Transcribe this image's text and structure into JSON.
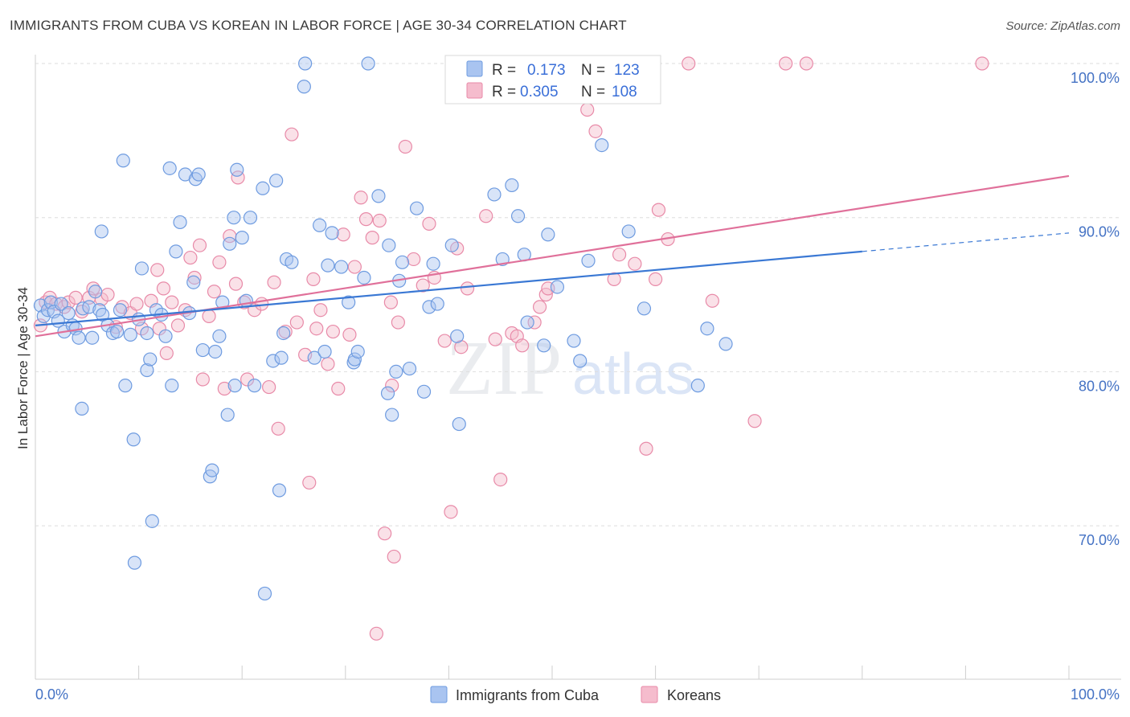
{
  "title": "IMMIGRANTS FROM CUBA VS KOREAN IN LABOR FORCE | AGE 30-34 CORRELATION CHART",
  "source": "Source: ZipAtlas.com",
  "watermark": {
    "zip": "ZIP",
    "atlas": "atlas"
  },
  "legend_box": {
    "rows": [
      {
        "r_label": "R =",
        "r_value": "0.173",
        "n_label": "N =",
        "n_value": "123",
        "color": "#a9c4f0",
        "stroke": "#6e9be0"
      },
      {
        "r_label": "R =",
        "r_value": "0.305",
        "n_label": "N =",
        "n_value": "108",
        "color": "#f5bccd",
        "stroke": "#e88aa8"
      }
    ]
  },
  "bottom_legend": [
    {
      "label": "Immigrants from Cuba",
      "color": "#a9c4f0",
      "stroke": "#6e9be0"
    },
    {
      "label": "Koreans",
      "color": "#f5bccd",
      "stroke": "#e88aa8"
    }
  ],
  "chart_data": {
    "type": "scatter",
    "ylabel": "In Labor Force | Age 30-34",
    "x_tick_labels": [
      "0.0%",
      "100.0%"
    ],
    "y_tick_labels": [
      "100.0%",
      "90.0%",
      "80.0%",
      "70.0%"
    ],
    "xlim": [
      0,
      100
    ],
    "ylim": [
      60.5,
      101.5
    ],
    "y_gridlines": [
      100,
      90,
      80,
      70
    ],
    "colors": {
      "cuba": "#3a78d4",
      "korean": "#e0709a"
    },
    "series": [
      {
        "name": "Immigrants from Cuba",
        "trend": {
          "x0": 0,
          "y0": 83.0,
          "x1": 80,
          "y1": 87.8,
          "dash_x1": 100,
          "dash_y1": 89.0
        },
        "points": [
          [
            0.5,
            84.3
          ],
          [
            0.8,
            83.6
          ],
          [
            1.2,
            84.0
          ],
          [
            1.5,
            84.5
          ],
          [
            1.8,
            83.9
          ],
          [
            2.2,
            83.3
          ],
          [
            2.5,
            84.4
          ],
          [
            2.8,
            82.6
          ],
          [
            3.2,
            83.8
          ],
          [
            3.6,
            83.0
          ],
          [
            3.9,
            82.8
          ],
          [
            4.2,
            82.2
          ],
          [
            4.6,
            84.1
          ],
          [
            4.5,
            77.6
          ],
          [
            5.2,
            84.2
          ],
          [
            5.5,
            82.2
          ],
          [
            5.8,
            85.2
          ],
          [
            6.2,
            84.0
          ],
          [
            6.5,
            83.7
          ],
          [
            6.4,
            89.1
          ],
          [
            7.0,
            83.0
          ],
          [
            7.5,
            82.5
          ],
          [
            7.9,
            82.6
          ],
          [
            8.2,
            84.0
          ],
          [
            8.5,
            93.7
          ],
          [
            8.7,
            79.1
          ],
          [
            9.2,
            82.4
          ],
          [
            9.5,
            75.6
          ],
          [
            9.6,
            67.6
          ],
          [
            10.0,
            83.4
          ],
          [
            10.3,
            86.7
          ],
          [
            10.8,
            82.5
          ],
          [
            10.8,
            80.1
          ],
          [
            11.1,
            80.8
          ],
          [
            11.3,
            70.3
          ],
          [
            11.7,
            84.0
          ],
          [
            12.2,
            83.7
          ],
          [
            12.6,
            82.3
          ],
          [
            13.0,
            93.2
          ],
          [
            13.2,
            79.1
          ],
          [
            13.6,
            87.8
          ],
          [
            14.0,
            89.7
          ],
          [
            14.5,
            92.8
          ],
          [
            14.9,
            83.8
          ],
          [
            15.3,
            85.8
          ],
          [
            15.5,
            92.5
          ],
          [
            15.8,
            92.8
          ],
          [
            16.2,
            81.4
          ],
          [
            16.9,
            73.2
          ],
          [
            17.1,
            73.6
          ],
          [
            17.4,
            81.3
          ],
          [
            17.8,
            82.3
          ],
          [
            18.1,
            84.5
          ],
          [
            18.6,
            77.2
          ],
          [
            18.8,
            88.3
          ],
          [
            19.2,
            90.0
          ],
          [
            19.3,
            79.1
          ],
          [
            19.5,
            93.1
          ],
          [
            20.0,
            88.7
          ],
          [
            20.4,
            84.6
          ],
          [
            20.8,
            90.0
          ],
          [
            21.2,
            79.1
          ],
          [
            22.0,
            91.9
          ],
          [
            22.2,
            65.6
          ],
          [
            23.0,
            80.7
          ],
          [
            23.3,
            92.4
          ],
          [
            23.6,
            72.3
          ],
          [
            23.8,
            80.9
          ],
          [
            24.0,
            82.5
          ],
          [
            24.3,
            87.3
          ],
          [
            24.8,
            87.1
          ],
          [
            26.0,
            98.5
          ],
          [
            26.1,
            100.0
          ],
          [
            27.0,
            80.9
          ],
          [
            27.5,
            89.5
          ],
          [
            28.0,
            81.3
          ],
          [
            28.3,
            86.9
          ],
          [
            28.7,
            89.0
          ],
          [
            29.6,
            86.8
          ],
          [
            30.3,
            84.5
          ],
          [
            30.8,
            80.6
          ],
          [
            30.9,
            80.8
          ],
          [
            31.2,
            81.3
          ],
          [
            31.8,
            86.1
          ],
          [
            32.2,
            100.0
          ],
          [
            33.2,
            91.4
          ],
          [
            34.1,
            78.6
          ],
          [
            34.2,
            88.2
          ],
          [
            34.5,
            77.2
          ],
          [
            34.9,
            80.0
          ],
          [
            35.2,
            85.9
          ],
          [
            35.5,
            87.1
          ],
          [
            36.2,
            80.2
          ],
          [
            36.9,
            90.6
          ],
          [
            37.6,
            78.7
          ],
          [
            38.1,
            84.2
          ],
          [
            38.5,
            87.0
          ],
          [
            38.9,
            84.4
          ],
          [
            40.3,
            88.2
          ],
          [
            40.8,
            82.3
          ],
          [
            41.0,
            76.6
          ],
          [
            44.4,
            91.5
          ],
          [
            45.2,
            87.3
          ],
          [
            46.1,
            92.1
          ],
          [
            46.7,
            90.1
          ],
          [
            47.3,
            87.6
          ],
          [
            47.6,
            83.2
          ],
          [
            49.2,
            81.7
          ],
          [
            49.6,
            88.9
          ],
          [
            50.5,
            85.5
          ],
          [
            52.1,
            82.0
          ],
          [
            52.7,
            80.7
          ],
          [
            53.5,
            87.2
          ],
          [
            54.8,
            94.7
          ],
          [
            57.4,
            89.1
          ],
          [
            58.9,
            84.1
          ],
          [
            64.1,
            79.1
          ],
          [
            65.0,
            82.8
          ],
          [
            66.8,
            81.8
          ]
        ]
      },
      {
        "name": "Koreans",
        "trend": {
          "x0": 0,
          "y0": 82.3,
          "x1": 100,
          "y1": 92.7
        },
        "points": [
          [
            0.5,
            83.0
          ],
          [
            1.0,
            84.5
          ],
          [
            1.4,
            84.8
          ],
          [
            2.0,
            84.4
          ],
          [
            2.8,
            84.2
          ],
          [
            3.2,
            84.5
          ],
          [
            3.9,
            84.8
          ],
          [
            4.5,
            83.9
          ],
          [
            5.2,
            84.8
          ],
          [
            5.6,
            85.4
          ],
          [
            6.4,
            84.7
          ],
          [
            7.0,
            85.0
          ],
          [
            7.8,
            82.9
          ],
          [
            8.4,
            84.2
          ],
          [
            9.2,
            83.8
          ],
          [
            9.8,
            84.4
          ],
          [
            10.3,
            82.8
          ],
          [
            11.2,
            84.6
          ],
          [
            11.8,
            86.6
          ],
          [
            12.0,
            82.8
          ],
          [
            12.4,
            85.4
          ],
          [
            12.7,
            81.2
          ],
          [
            13.2,
            84.5
          ],
          [
            13.8,
            83.0
          ],
          [
            14.5,
            84.0
          ],
          [
            15.0,
            87.4
          ],
          [
            15.4,
            86.1
          ],
          [
            15.9,
            88.2
          ],
          [
            16.2,
            79.5
          ],
          [
            16.8,
            83.6
          ],
          [
            17.3,
            85.2
          ],
          [
            17.8,
            87.1
          ],
          [
            18.3,
            78.9
          ],
          [
            18.8,
            88.8
          ],
          [
            19.4,
            85.7
          ],
          [
            19.6,
            92.6
          ],
          [
            20.2,
            84.5
          ],
          [
            21.2,
            84.0
          ],
          [
            21.9,
            84.4
          ],
          [
            22.6,
            79.0
          ],
          [
            23.1,
            85.8
          ],
          [
            23.5,
            76.3
          ],
          [
            24.2,
            82.6
          ],
          [
            24.8,
            95.4
          ],
          [
            25.3,
            83.2
          ],
          [
            26.1,
            81.1
          ],
          [
            26.5,
            72.8
          ],
          [
            26.9,
            86.0
          ],
          [
            27.2,
            82.8
          ],
          [
            27.6,
            84.0
          ],
          [
            28.3,
            80.5
          ],
          [
            28.8,
            82.6
          ],
          [
            29.3,
            78.9
          ],
          [
            29.8,
            88.9
          ],
          [
            30.4,
            82.4
          ],
          [
            30.9,
            86.8
          ],
          [
            31.5,
            91.3
          ],
          [
            32.0,
            89.9
          ],
          [
            32.6,
            88.7
          ],
          [
            33.3,
            89.8
          ],
          [
            33.8,
            69.5
          ],
          [
            34.5,
            79.1
          ],
          [
            34.7,
            68.0
          ],
          [
            35.1,
            83.2
          ],
          [
            35.8,
            94.6
          ],
          [
            36.6,
            87.3
          ],
          [
            37.5,
            85.6
          ],
          [
            38.1,
            89.6
          ],
          [
            38.6,
            86.1
          ],
          [
            39.6,
            82.0
          ],
          [
            40.2,
            70.9
          ],
          [
            40.8,
            88.0
          ],
          [
            41.2,
            81.6
          ],
          [
            41.8,
            85.4
          ],
          [
            42.7,
            100.0
          ],
          [
            43.6,
            90.1
          ],
          [
            44.5,
            82.1
          ],
          [
            45.0,
            73.0
          ],
          [
            46.1,
            82.5
          ],
          [
            46.6,
            82.3
          ],
          [
            47.1,
            81.7
          ],
          [
            48.3,
            83.2
          ],
          [
            48.8,
            84.2
          ],
          [
            49.4,
            85.0
          ],
          [
            49.6,
            85.4
          ],
          [
            51.0,
            98.0
          ],
          [
            52.1,
            100.0
          ],
          [
            53.0,
            98.0
          ],
          [
            53.4,
            97.0
          ],
          [
            54.2,
            95.6
          ],
          [
            54.8,
            100.0
          ],
          [
            56.0,
            86.0
          ],
          [
            56.5,
            87.6
          ],
          [
            57.6,
            100.0
          ],
          [
            59.1,
            75.0
          ],
          [
            60.3,
            90.5
          ],
          [
            61.2,
            88.6
          ],
          [
            63.2,
            100.0
          ],
          [
            65.5,
            84.6
          ],
          [
            69.6,
            76.8
          ],
          [
            72.6,
            100.0
          ],
          [
            74.6,
            100.0
          ],
          [
            91.6,
            100.0
          ],
          [
            34.4,
            84.5
          ],
          [
            33.0,
            63.0
          ],
          [
            60.0,
            86.0
          ],
          [
            58.0,
            87.0
          ],
          [
            20.5,
            79.5
          ]
        ]
      }
    ]
  }
}
